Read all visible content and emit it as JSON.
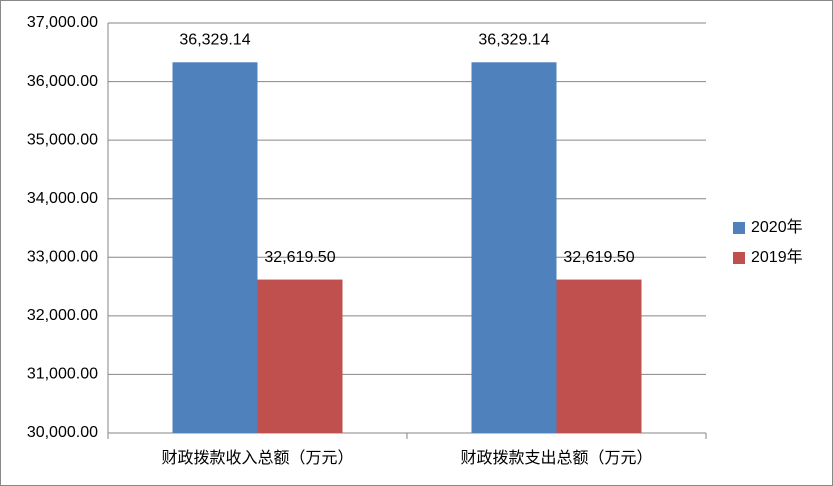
{
  "chart_data": {
    "type": "bar",
    "categories": [
      "财政拨款收入总额（万元）",
      "财政拨款支出总额（万元）"
    ],
    "series": [
      {
        "name": "2020年",
        "color": "#4f81bd",
        "values": [
          36329.14,
          36329.14
        ],
        "value_labels": [
          "36,329.14",
          "36,329.14"
        ]
      },
      {
        "name": "2019年",
        "color": "#c0504d",
        "values": [
          32619.5,
          32619.5
        ],
        "value_labels": [
          "32,619.50",
          "32,619.50"
        ]
      }
    ],
    "ylim": [
      30000,
      37000
    ],
    "yticks": [
      {
        "value": 30000,
        "label": "30,000.00"
      },
      {
        "value": 31000,
        "label": "31,000.00"
      },
      {
        "value": 32000,
        "label": "32,000.00"
      },
      {
        "value": 33000,
        "label": "33,000.00"
      },
      {
        "value": 34000,
        "label": "34,000.00"
      },
      {
        "value": 35000,
        "label": "35,000.00"
      },
      {
        "value": 36000,
        "label": "36,000.00"
      },
      {
        "value": 37000,
        "label": "37,000.00"
      }
    ],
    "grid": true,
    "legend": "right"
  }
}
